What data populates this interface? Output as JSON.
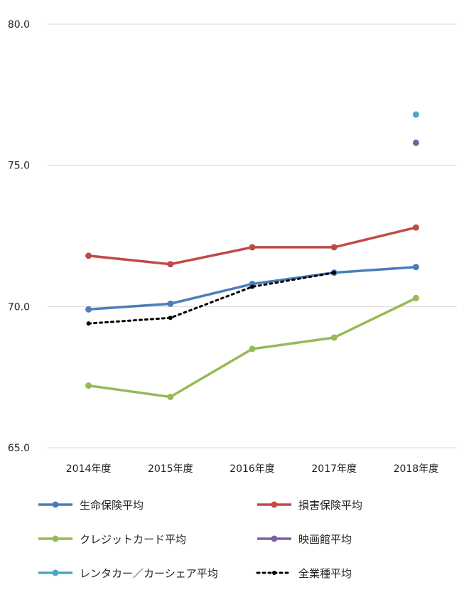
{
  "chart_data": {
    "type": "line",
    "categories": [
      "2014年度",
      "2015年度",
      "2016年度",
      "2017年度",
      "2018年度"
    ],
    "ylim": [
      65.0,
      80.0
    ],
    "yticks": [
      "65.0",
      "70.0",
      "75.0",
      "80.0"
    ],
    "grid": true,
    "legend_position": "bottom",
    "series": [
      {
        "name": "生命保険平均",
        "color": "#4a7ebb",
        "style": "solid",
        "values": [
          69.9,
          70.1,
          70.8,
          71.2,
          71.4
        ]
      },
      {
        "name": "損害保険平均",
        "color": "#be4b48",
        "style": "solid",
        "values": [
          71.8,
          71.5,
          72.1,
          72.1,
          72.8
        ]
      },
      {
        "name": "クレジットカード平均",
        "color": "#98b954",
        "style": "solid",
        "values": [
          67.2,
          66.8,
          68.5,
          68.9,
          70.3
        ]
      },
      {
        "name": "映画館平均",
        "color": "#7d5fa0",
        "style": "solid",
        "values": [
          null,
          null,
          null,
          null,
          75.8
        ]
      },
      {
        "name": "レンタカー／カーシェア平均",
        "color": "#46aac4",
        "style": "solid",
        "values": [
          null,
          null,
          null,
          null,
          76.8
        ]
      },
      {
        "name": "全業種平均",
        "color": "#000000",
        "style": "dotted",
        "values": [
          69.4,
          69.6,
          70.7,
          71.2,
          null
        ]
      }
    ]
  }
}
